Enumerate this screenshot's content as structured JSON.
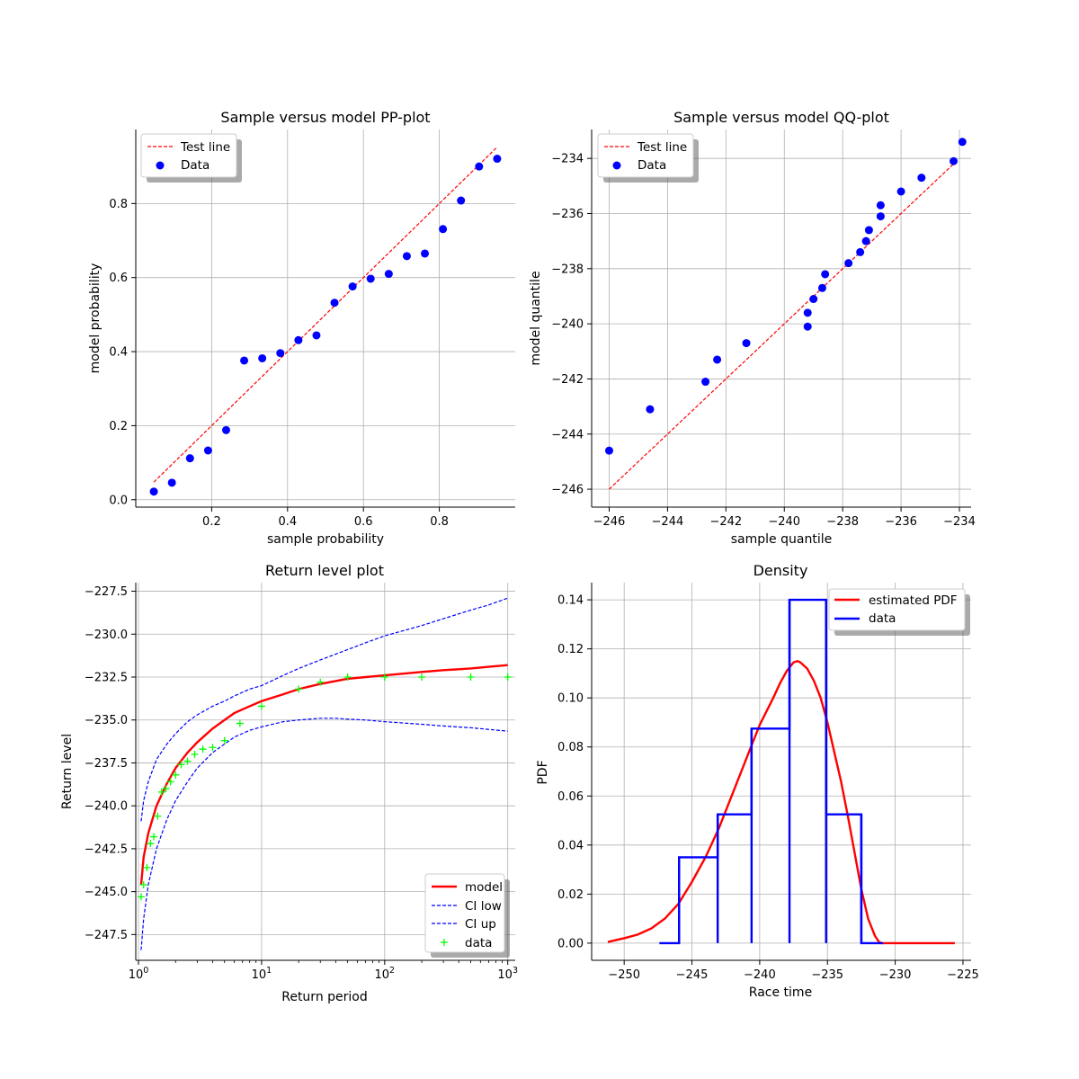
{
  "chart_data": [
    {
      "id": "pp",
      "type": "scatter",
      "title": "Sample versus model PP-plot",
      "xlabel": "sample probability",
      "ylabel": "model probability",
      "xlim": [
        0.0,
        1.0
      ],
      "ylim": [
        -0.02,
        1.0
      ],
      "xticks": [
        0.2,
        0.4,
        0.6,
        0.8
      ],
      "yticks": [
        0.0,
        0.2,
        0.4,
        0.6,
        0.8
      ],
      "xtick_labels": [
        "0.2",
        "0.4",
        "0.6",
        "0.8"
      ],
      "ytick_labels": [
        "0.0",
        "0.2",
        "0.4",
        "0.6",
        "0.8"
      ],
      "grid": true,
      "legend": "top-left",
      "series": [
        {
          "name": "Test line",
          "kind": "dashed-line",
          "color": "#ff0000",
          "x": [
            0.0476,
            0.9524
          ],
          "y": [
            0.0476,
            0.9524
          ]
        },
        {
          "name": "Data",
          "kind": "points",
          "color": "#0000ff",
          "x": [
            0.0476,
            0.0952,
            0.1429,
            0.1905,
            0.2381,
            0.2857,
            0.3333,
            0.381,
            0.4286,
            0.4762,
            0.5238,
            0.5714,
            0.619,
            0.6667,
            0.7143,
            0.7619,
            0.8095,
            0.8571,
            0.9048,
            0.9524
          ],
          "y": [
            0.022,
            0.046,
            0.112,
            0.133,
            0.188,
            0.376,
            0.382,
            0.396,
            0.431,
            0.444,
            0.532,
            0.576,
            0.597,
            0.61,
            0.658,
            0.665,
            0.731,
            0.808,
            0.9,
            0.921
          ]
        }
      ]
    },
    {
      "id": "qq",
      "type": "scatter",
      "title": "Sample versus model QQ-plot",
      "xlabel": "sample quantile",
      "ylabel": "model quantile",
      "xlim": [
        -246.6,
        -233.6
      ],
      "ylim": [
        -246.65,
        -232.95
      ],
      "xticks": [
        -246,
        -244,
        -242,
        -240,
        -238,
        -236,
        -234
      ],
      "yticks": [
        -246,
        -244,
        -242,
        -240,
        -238,
        -236,
        -234
      ],
      "xtick_labels": [
        "−246",
        "−244",
        "−242",
        "−240",
        "−238",
        "−236",
        "−234"
      ],
      "ytick_labels": [
        "−246",
        "−244",
        "−242",
        "−240",
        "−238",
        "−236",
        "−234"
      ],
      "grid": true,
      "legend": "top-left",
      "series": [
        {
          "name": "Test line",
          "kind": "dashed-line",
          "color": "#ff0000",
          "x": [
            -246.0,
            -234.1
          ],
          "y": [
            -246.0,
            -234.1
          ]
        },
        {
          "name": "Data",
          "kind": "points",
          "color": "#0000ff",
          "x": [
            -246.0,
            -244.6,
            -242.7,
            -242.3,
            -241.3,
            -239.2,
            -239.2,
            -239.0,
            -238.7,
            -238.6,
            -237.8,
            -237.4,
            -237.2,
            -237.1,
            -236.7,
            -236.7,
            -236.0,
            -235.3,
            -234.2,
            -233.9
          ],
          "y": [
            -244.6,
            -243.1,
            -242.1,
            -241.3,
            -240.7,
            -240.1,
            -239.6,
            -239.1,
            -238.7,
            -238.2,
            -237.8,
            -237.4,
            -237.0,
            -236.6,
            -236.1,
            -235.7,
            -235.2,
            -234.7,
            -234.1,
            -233.4
          ]
        }
      ]
    },
    {
      "id": "rl",
      "type": "line",
      "title": "Return level plot",
      "xlabel": "Return period",
      "ylabel": "Return level",
      "xscale": "log",
      "xlim": [
        0.95,
        1150
      ],
      "ylim": [
        -249.0,
        -227.0
      ],
      "xticks": [
        1,
        10,
        100,
        1000
      ],
      "xtick_labels": [
        {
          "base": "10",
          "exp": "0"
        },
        {
          "base": "10",
          "exp": "1"
        },
        {
          "base": "10",
          "exp": "2"
        },
        {
          "base": "10",
          "exp": "3"
        }
      ],
      "yticks": [
        -247.5,
        -245.0,
        -242.5,
        -240.0,
        -237.5,
        -235.0,
        -232.5,
        -230.0,
        -227.5
      ],
      "ytick_labels": [
        "−247.5",
        "−245.0",
        "−242.5",
        "−240.0",
        "−237.5",
        "−235.0",
        "−232.5",
        "−230.0",
        "−227.5"
      ],
      "grid": true,
      "legend": "bottom-right",
      "series": [
        {
          "name": "model",
          "kind": "solid-line",
          "color": "#ff0000",
          "x": [
            1.05,
            1.1,
            1.2,
            1.4,
            1.7,
            2,
            2.5,
            3,
            4,
            5,
            6,
            8,
            10,
            15,
            20,
            30,
            50,
            70,
            100,
            200,
            300,
            500,
            700,
            1000
          ],
          "y": [
            -244.6,
            -243.0,
            -241.6,
            -240.0,
            -238.7,
            -237.8,
            -236.9,
            -236.3,
            -235.5,
            -235.0,
            -234.6,
            -234.2,
            -233.9,
            -233.5,
            -233.2,
            -232.9,
            -232.6,
            -232.5,
            -232.4,
            -232.2,
            -232.1,
            -232.0,
            -231.9,
            -231.8
          ]
        },
        {
          "name": "CI low",
          "kind": "dashed-line",
          "color": "#0000ff",
          "x": [
            1.05,
            1.1,
            1.2,
            1.4,
            1.7,
            2,
            2.5,
            3,
            4,
            5,
            6,
            8,
            10,
            15,
            20,
            30,
            40,
            50,
            70,
            100,
            200,
            300,
            500,
            700,
            1000
          ],
          "y": [
            -248.4,
            -246.6,
            -244.6,
            -242.5,
            -240.8,
            -239.7,
            -238.6,
            -237.8,
            -236.9,
            -236.4,
            -236.0,
            -235.6,
            -235.4,
            -235.1,
            -235.0,
            -234.9,
            -234.9,
            -234.95,
            -235.0,
            -235.1,
            -235.25,
            -235.35,
            -235.45,
            -235.55,
            -235.65
          ]
        },
        {
          "name": "CI up",
          "kind": "dashed-line",
          "color": "#0000ff",
          "x": [
            1.05,
            1.1,
            1.2,
            1.4,
            1.7,
            2,
            2.5,
            3,
            4,
            5,
            6,
            8,
            10,
            15,
            20,
            30,
            50,
            70,
            100,
            200,
            300,
            500,
            700,
            1000
          ],
          "y": [
            -240.9,
            -239.7,
            -238.6,
            -237.3,
            -236.4,
            -235.8,
            -235.1,
            -234.7,
            -234.2,
            -233.9,
            -233.6,
            -233.2,
            -233.0,
            -232.4,
            -232.0,
            -231.5,
            -230.9,
            -230.5,
            -230.1,
            -229.5,
            -229.1,
            -228.6,
            -228.3,
            -227.9
          ]
        },
        {
          "name": "data",
          "kind": "plus-markers",
          "color": "#00ff00",
          "x": [
            1.05,
            1.1,
            1.17,
            1.25,
            1.33,
            1.43,
            1.54,
            1.67,
            1.82,
            2.0,
            2.22,
            2.5,
            2.86,
            3.33,
            4.0,
            5.0,
            6.67,
            10.0,
            20.0,
            30.0,
            50.0,
            100,
            200,
            500,
            1000
          ],
          "y": [
            -245.3,
            -244.6,
            -243.6,
            -242.2,
            -241.8,
            -240.6,
            -239.2,
            -239.0,
            -238.6,
            -238.2,
            -237.6,
            -237.4,
            -237.0,
            -236.7,
            -236.6,
            -236.2,
            -235.2,
            -234.2,
            -233.2,
            -232.8,
            -232.5,
            -232.5,
            -232.5,
            -232.5,
            -232.5
          ]
        }
      ]
    },
    {
      "id": "density",
      "type": "line",
      "title": "Density",
      "xlabel": "Race time",
      "ylabel": "PDF",
      "xlim": [
        -252.4,
        -224.4
      ],
      "ylim": [
        -0.007,
        0.147
      ],
      "xticks": [
        -250,
        -245,
        -240,
        -235,
        -230,
        -225
      ],
      "xtick_labels": [
        "−250",
        "−245",
        "−240",
        "−235",
        "−230",
        "−225"
      ],
      "yticks": [
        0.0,
        0.02,
        0.04,
        0.06,
        0.08,
        0.1,
        0.12,
        0.14
      ],
      "ytick_labels": [
        "0.00",
        "0.02",
        "0.04",
        "0.06",
        "0.08",
        "0.10",
        "0.12",
        "0.14"
      ],
      "grid": true,
      "legend": "top-right",
      "series": [
        {
          "name": "estimated PDF",
          "kind": "solid-line",
          "color": "#ff0000",
          "x": [
            -251.2,
            -250,
            -249,
            -248,
            -247,
            -246,
            -245,
            -244,
            -243,
            -242,
            -241,
            -240,
            -239,
            -238.5,
            -238,
            -237.5,
            -237.2,
            -237,
            -236.5,
            -236,
            -235.5,
            -235,
            -234,
            -233.5,
            -233,
            -232.5,
            -232,
            -231.5,
            -231.2,
            -231,
            -230,
            -228,
            -225.6
          ],
          "y": [
            0.0005,
            0.002,
            0.0035,
            0.006,
            0.01,
            0.016,
            0.025,
            0.035,
            0.047,
            0.061,
            0.075,
            0.089,
            0.1,
            0.106,
            0.111,
            0.1145,
            0.115,
            0.1145,
            0.112,
            0.107,
            0.1,
            0.09,
            0.066,
            0.052,
            0.037,
            0.022,
            0.01,
            0.003,
            0.0005,
            0.0,
            0.0,
            0.0,
            0.0
          ]
        },
        {
          "name": "data",
          "kind": "histogram-step",
          "color": "#0000ff",
          "edges": [
            -247.4,
            -245.95,
            -243.1,
            -240.6,
            -237.8,
            -235.1,
            -232.5,
            -230.9
          ],
          "heights": [
            0.0,
            0.035,
            0.0525,
            0.0875,
            0.14,
            0.0525,
            0.0
          ]
        }
      ]
    }
  ]
}
